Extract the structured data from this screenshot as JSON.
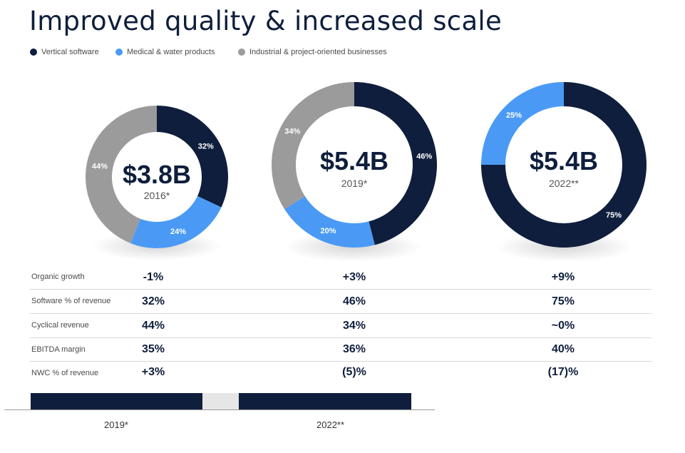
{
  "title": "Improved quality & increased scale",
  "legend": [
    {
      "label": "Vertical software",
      "color": "#0e1e3c"
    },
    {
      "label": "Medical & water products",
      "color": "#4a9af5"
    },
    {
      "label": "Industrial & project-oriented businesses",
      "color": "#9b9b9b"
    }
  ],
  "chart_data": [
    {
      "type": "pie",
      "center_value": "$3.8B",
      "center_label": "2016*",
      "slices": [
        {
          "series": "Vertical software",
          "value": 32,
          "label": "32%"
        },
        {
          "series": "Medical & water products",
          "value": 24,
          "label": "24%"
        },
        {
          "series": "Industrial & project-oriented businesses",
          "value": 44,
          "label": "44%"
        }
      ]
    },
    {
      "type": "pie",
      "center_value": "$5.4B",
      "center_label": "2019*",
      "slices": [
        {
          "series": "Vertical software",
          "value": 46,
          "label": "46%"
        },
        {
          "series": "Medical & water products",
          "value": 20,
          "label": "20%"
        },
        {
          "series": "Industrial & project-oriented businesses",
          "value": 34,
          "label": "34%"
        }
      ]
    },
    {
      "type": "pie",
      "center_value": "$5.4B",
      "center_label": "2022**",
      "slices": [
        {
          "series": "Vertical software",
          "value": 75,
          "label": "75%"
        },
        {
          "series": "Medical & water products",
          "value": 25,
          "label": "25%"
        }
      ]
    }
  ],
  "metrics": [
    {
      "label": "Organic growth",
      "values": [
        "-1%",
        "+3%",
        "+9%"
      ]
    },
    {
      "label": "Software % of revenue",
      "values": [
        "32%",
        "46%",
        "75%"
      ]
    },
    {
      "label": "Cyclical revenue",
      "values": [
        "44%",
        "34%",
        "~0%"
      ]
    },
    {
      "label": "EBITDA margin",
      "values": [
        "35%",
        "36%",
        "40%"
      ]
    },
    {
      "label": "NWC % of revenue",
      "values": [
        "+3%",
        "(5)%",
        "(17)%"
      ]
    }
  ],
  "timeline": {
    "labels": [
      "2019*",
      "2022**"
    ],
    "colors": {
      "dark": "#0e1e3c",
      "gap": "#e6e6e6"
    }
  }
}
